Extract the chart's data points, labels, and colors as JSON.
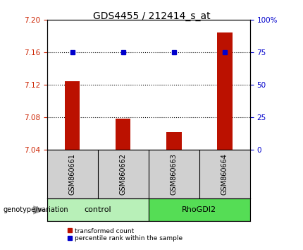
{
  "title": "GDS4455 / 212414_s_at",
  "samples": [
    "GSM860661",
    "GSM860662",
    "GSM860663",
    "GSM860664"
  ],
  "groups": [
    "control",
    "control",
    "RhoGDI2",
    "RhoGDI2"
  ],
  "group_colors": {
    "control": "#b8f0b8",
    "RhoGDI2": "#55dd55"
  },
  "bar_values": [
    7.125,
    7.079,
    7.062,
    7.185
  ],
  "bar_baseline": 7.04,
  "bar_color": "#bb1100",
  "dot_values": [
    7.16,
    7.16,
    7.16,
    7.16
  ],
  "dot_color": "#0000cc",
  "ylim_left": [
    7.04,
    7.2
  ],
  "ylim_right": [
    0,
    100
  ],
  "yticks_left": [
    7.04,
    7.08,
    7.12,
    7.16,
    7.2
  ],
  "yticks_right": [
    0,
    25,
    50,
    75,
    100
  ],
  "ytick_labels_right": [
    "0",
    "25",
    "50",
    "75",
    "100%"
  ],
  "grid_values": [
    7.08,
    7.12,
    7.16
  ],
  "left_axis_color": "#cc2200",
  "right_axis_color": "#0000cc",
  "legend_bar_label": "transformed count",
  "legend_dot_label": "percentile rank within the sample",
  "genotype_label": "genotype/variation",
  "sample_label_bg": "#d0d0d0",
  "plot_bg": "#ffffff"
}
